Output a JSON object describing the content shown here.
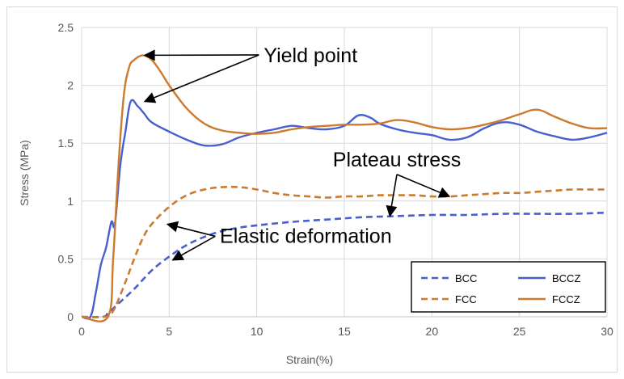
{
  "chart_data": {
    "type": "line",
    "xlabel": "Strain(%)",
    "ylabel": "Stress (MPa)",
    "xlim": [
      0,
      30
    ],
    "ylim": [
      0,
      2.5
    ],
    "x_ticks": [
      0,
      5,
      10,
      15,
      20,
      25,
      30
    ],
    "y_ticks": [
      0,
      0.5,
      1,
      1.5,
      2,
      2.5
    ],
    "y_tick_labels": [
      "0",
      "0.5",
      "1",
      "1.5",
      "2",
      "2.5"
    ],
    "grid": true,
    "legend_position": "bottom-right",
    "series": [
      {
        "name": "BCC",
        "color": "#4a5fcf",
        "dash": true,
        "points": [
          [
            0,
            0
          ],
          [
            1.2,
            0
          ],
          [
            1.5,
            0.03
          ],
          [
            2,
            0.1
          ],
          [
            3,
            0.24
          ],
          [
            4,
            0.4
          ],
          [
            5,
            0.52
          ],
          [
            6,
            0.62
          ],
          [
            7,
            0.69
          ],
          [
            8,
            0.74
          ],
          [
            9,
            0.77
          ],
          [
            10,
            0.79
          ],
          [
            12,
            0.82
          ],
          [
            14,
            0.84
          ],
          [
            16,
            0.86
          ],
          [
            18,
            0.87
          ],
          [
            20,
            0.88
          ],
          [
            22,
            0.88
          ],
          [
            24,
            0.89
          ],
          [
            26,
            0.89
          ],
          [
            28,
            0.89
          ],
          [
            30,
            0.9
          ]
        ]
      },
      {
        "name": "BCCZ",
        "color": "#4a5fcf",
        "dash": false,
        "points": [
          [
            0,
            0
          ],
          [
            0.5,
            0
          ],
          [
            0.8,
            0.2
          ],
          [
            1.1,
            0.45
          ],
          [
            1.4,
            0.6
          ],
          [
            1.7,
            0.82
          ],
          [
            1.9,
            0.8
          ],
          [
            2.2,
            1.3
          ],
          [
            2.5,
            1.6
          ],
          [
            2.8,
            1.86
          ],
          [
            3.2,
            1.82
          ],
          [
            3.6,
            1.75
          ],
          [
            4,
            1.68
          ],
          [
            5,
            1.6
          ],
          [
            6,
            1.53
          ],
          [
            7,
            1.48
          ],
          [
            8,
            1.49
          ],
          [
            9,
            1.55
          ],
          [
            10,
            1.59
          ],
          [
            11,
            1.62
          ],
          [
            12,
            1.65
          ],
          [
            13,
            1.63
          ],
          [
            14,
            1.62
          ],
          [
            15,
            1.65
          ],
          [
            15.8,
            1.74
          ],
          [
            16.5,
            1.72
          ],
          [
            17,
            1.67
          ],
          [
            18,
            1.62
          ],
          [
            19,
            1.59
          ],
          [
            20,
            1.57
          ],
          [
            21,
            1.53
          ],
          [
            22,
            1.55
          ],
          [
            23,
            1.63
          ],
          [
            24,
            1.68
          ],
          [
            25,
            1.66
          ],
          [
            26,
            1.6
          ],
          [
            27,
            1.56
          ],
          [
            28,
            1.53
          ],
          [
            29,
            1.55
          ],
          [
            30,
            1.59
          ]
        ]
      },
      {
        "name": "FCC",
        "color": "#cc7a2e",
        "dash": true,
        "points": [
          [
            0,
            0
          ],
          [
            1.3,
            0
          ],
          [
            1.8,
            0.05
          ],
          [
            2.5,
            0.3
          ],
          [
            3,
            0.5
          ],
          [
            3.5,
            0.68
          ],
          [
            4,
            0.8
          ],
          [
            5,
            0.95
          ],
          [
            6,
            1.05
          ],
          [
            7,
            1.1
          ],
          [
            8,
            1.12
          ],
          [
            9,
            1.12
          ],
          [
            10,
            1.1
          ],
          [
            11,
            1.07
          ],
          [
            12,
            1.05
          ],
          [
            13,
            1.04
          ],
          [
            14,
            1.03
          ],
          [
            15,
            1.04
          ],
          [
            16,
            1.04
          ],
          [
            17,
            1.05
          ],
          [
            18,
            1.05
          ],
          [
            19,
            1.05
          ],
          [
            20,
            1.04
          ],
          [
            21,
            1.04
          ],
          [
            22,
            1.05
          ],
          [
            23,
            1.06
          ],
          [
            24,
            1.07
          ],
          [
            25,
            1.07
          ],
          [
            26,
            1.08
          ],
          [
            27,
            1.09
          ],
          [
            28,
            1.1
          ],
          [
            29,
            1.1
          ],
          [
            30,
            1.1
          ]
        ]
      },
      {
        "name": "FCCZ",
        "color": "#cc7a2e",
        "dash": false,
        "points": [
          [
            0,
            0
          ],
          [
            1.5,
            0
          ],
          [
            1.8,
            0.5
          ],
          [
            2.1,
            1.3
          ],
          [
            2.4,
            1.9
          ],
          [
            2.7,
            2.15
          ],
          [
            3,
            2.22
          ],
          [
            3.5,
            2.26
          ],
          [
            4,
            2.22
          ],
          [
            4.5,
            2.12
          ],
          [
            5,
            2
          ],
          [
            6,
            1.8
          ],
          [
            7,
            1.67
          ],
          [
            8,
            1.61
          ],
          [
            9,
            1.59
          ],
          [
            10,
            1.58
          ],
          [
            11,
            1.59
          ],
          [
            12,
            1.62
          ],
          [
            13,
            1.64
          ],
          [
            14,
            1.65
          ],
          [
            15,
            1.66
          ],
          [
            16,
            1.66
          ],
          [
            17,
            1.67
          ],
          [
            18,
            1.7
          ],
          [
            19,
            1.68
          ],
          [
            20,
            1.64
          ],
          [
            21,
            1.62
          ],
          [
            22,
            1.63
          ],
          [
            23,
            1.66
          ],
          [
            24,
            1.7
          ],
          [
            25,
            1.75
          ],
          [
            26,
            1.79
          ],
          [
            27,
            1.73
          ],
          [
            28,
            1.67
          ],
          [
            29,
            1.63
          ],
          [
            30,
            1.63
          ]
        ]
      }
    ],
    "annotations": [
      {
        "label": "Yield point",
        "text_at": [
          10.4,
          2.2
        ],
        "arrows": [
          [
            3.6,
            2.26
          ],
          [
            3.6,
            1.86
          ]
        ]
      },
      {
        "label": "Plateau stress",
        "text_at": [
          18,
          1.3
        ],
        "arrows": [
          [
            17.6,
            0.87
          ],
          [
            21,
            1.04
          ]
        ]
      },
      {
        "label": "Elastic deformation",
        "text_at": [
          12.8,
          0.64
        ],
        "arrows": [
          [
            4.9,
            0.8
          ],
          [
            5.2,
            0.49
          ]
        ]
      }
    ]
  }
}
